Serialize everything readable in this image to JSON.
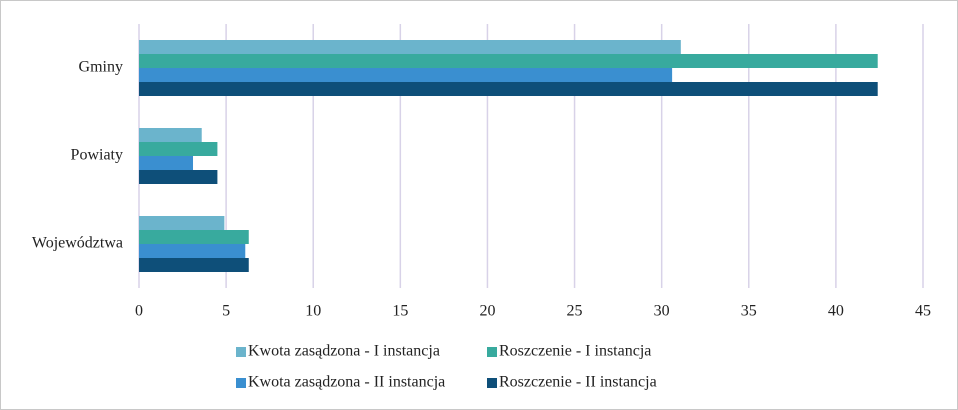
{
  "chart_data": {
    "type": "hbar",
    "categories": [
      "Gminy",
      "Powiaty",
      "Województwa"
    ],
    "series": [
      {
        "name": "Kwota zasądzona - I instancja",
        "color": "#6bb4cc",
        "values": [
          31.1,
          3.6,
          4.9
        ]
      },
      {
        "name": "Roszczenie - I instancja",
        "color": "#38aa9e",
        "values": [
          42.4,
          4.5,
          6.3
        ]
      },
      {
        "name": "Kwota zasądzona - II instancja",
        "color": "#3a8fd0",
        "values": [
          30.6,
          3.1,
          6.1
        ]
      },
      {
        "name": "Roszczenie - II instancja",
        "color": "#0e4f79",
        "values": [
          42.4,
          4.5,
          6.3
        ]
      }
    ],
    "xlim": [
      0,
      45
    ],
    "xticks": [
      0,
      5,
      10,
      15,
      20,
      25,
      30,
      35,
      40,
      45
    ],
    "grid": true
  }
}
